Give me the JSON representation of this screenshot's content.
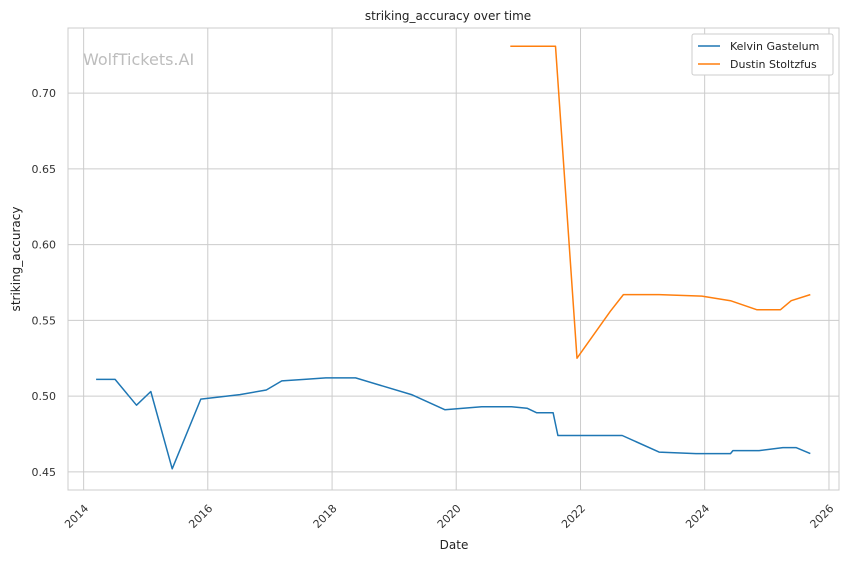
{
  "watermark": "WolfTickets.AI",
  "chart_data": {
    "type": "line",
    "title": "striking_accuracy over time",
    "xlabel": "Date",
    "ylabel": "striking_accuracy",
    "xlim": [
      "2013-10-01",
      "2026-03-01"
    ],
    "ylim": [
      0.438,
      0.743
    ],
    "x_ticks": [
      "2014",
      "2016",
      "2018",
      "2020",
      "2022",
      "2024",
      "2026"
    ],
    "y_ticks": [
      "0.45",
      "0.50",
      "0.55",
      "0.60",
      "0.65",
      "0.70"
    ],
    "grid": true,
    "legend_position": "top-right",
    "series": [
      {
        "name": "Kelvin Gastelum",
        "color": "#1f77b4",
        "points": [
          [
            "2014-03-15",
            0.511
          ],
          [
            "2014-07-05",
            0.511
          ],
          [
            "2014-11-08",
            0.494
          ],
          [
            "2015-01-31",
            0.503
          ],
          [
            "2015-06-06",
            0.452
          ],
          [
            "2015-11-21",
            0.498
          ],
          [
            "2016-07-08",
            0.501
          ],
          [
            "2016-12-10",
            0.504
          ],
          [
            "2017-03-11",
            0.51
          ],
          [
            "2017-07-22",
            0.511
          ],
          [
            "2017-11-25",
            0.512
          ],
          [
            "2018-05-19",
            0.512
          ],
          [
            "2019-04-13",
            0.501
          ],
          [
            "2019-10-26",
            0.491
          ],
          [
            "2020-05-30",
            0.493
          ],
          [
            "2020-11-21",
            0.493
          ],
          [
            "2021-02-20",
            0.492
          ],
          [
            "2021-04-17",
            0.489
          ],
          [
            "2021-07-24",
            0.489
          ],
          [
            "2021-08-21",
            0.474
          ],
          [
            "2022-09-03",
            0.474
          ],
          [
            "2023-04-08",
            0.463
          ],
          [
            "2023-11-11",
            0.462
          ],
          [
            "2024-06-01",
            0.462
          ],
          [
            "2024-06-15",
            0.464
          ],
          [
            "2024-11-16",
            0.464
          ],
          [
            "2025-04-05",
            0.466
          ],
          [
            "2025-06-21",
            0.466
          ],
          [
            "2025-09-13",
            0.462
          ]
        ]
      },
      {
        "name": "Dustin Stoltzfus",
        "color": "#ff7f0e",
        "points": [
          [
            "2020-11-14",
            0.731
          ],
          [
            "2021-08-07",
            0.731
          ],
          [
            "2021-12-11",
            0.525
          ],
          [
            "2022-06-25",
            0.556
          ],
          [
            "2022-09-10",
            0.567
          ],
          [
            "2023-04-08",
            0.567
          ],
          [
            "2023-12-16",
            0.566
          ],
          [
            "2024-06-01",
            0.563
          ],
          [
            "2024-11-02",
            0.557
          ],
          [
            "2025-03-22",
            0.557
          ],
          [
            "2025-05-24",
            0.563
          ],
          [
            "2025-09-13",
            0.567
          ]
        ]
      }
    ]
  }
}
